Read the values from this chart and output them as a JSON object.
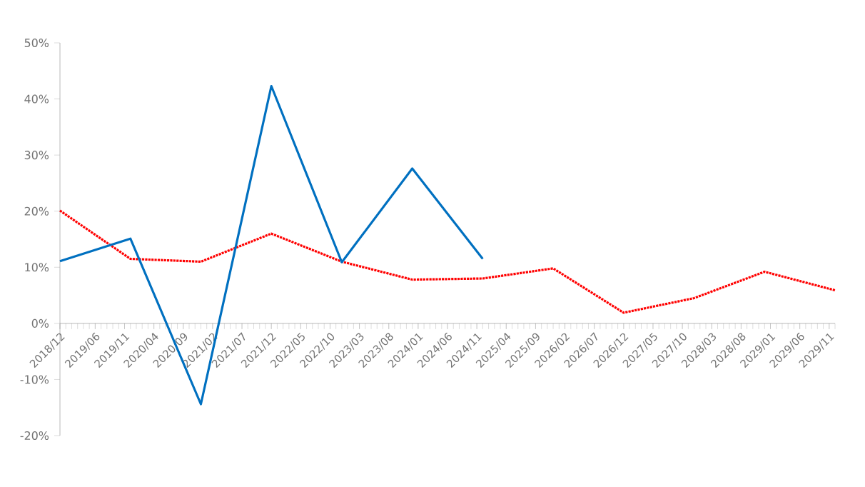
{
  "chart_data": {
    "type": "line",
    "x": [
      "2018-12",
      "2019-12",
      "2020-12",
      "2021-12",
      "2022-12",
      "2023-12",
      "2024-12",
      "2025-12",
      "2026-12",
      "2027-12",
      "2028-12",
      "2029-12"
    ],
    "series": [
      {
        "color": "#ff0000",
        "line_style": "dotted",
        "values": [
          20.1,
          11.5,
          11.0,
          16.0,
          11.0,
          7.8,
          8.0,
          9.8,
          1.9,
          4.5,
          9.2,
          5.9
        ]
      },
      {
        "color": "#0070c0",
        "line_style": "solid",
        "values": [
          11.1,
          15.1,
          -14.4,
          42.3,
          10.9,
          27.6,
          11.5,
          null,
          null,
          null,
          null,
          null
        ]
      }
    ],
    "xlim": [
      "2018-12",
      "2029-12"
    ],
    "xticks": [
      {
        "value": "2018-12",
        "label": "2018/12"
      },
      {
        "value": "2019-06",
        "label": "2019/06"
      },
      {
        "value": "2019-11",
        "label": "2019/11"
      },
      {
        "value": "2020-04",
        "label": "2020/04"
      },
      {
        "value": "2020-09",
        "label": "2020/09"
      },
      {
        "value": "2021-02",
        "label": "2021/02"
      },
      {
        "value": "2021-07",
        "label": "2021/07"
      },
      {
        "value": "2021-12",
        "label": "2021/12"
      },
      {
        "value": "2022-05",
        "label": "2022/05"
      },
      {
        "value": "2022-10",
        "label": "2022/10"
      },
      {
        "value": "2023-03",
        "label": "2023/03"
      },
      {
        "value": "2023-08",
        "label": "2023/08"
      },
      {
        "value": "2024-01",
        "label": "2024/01"
      },
      {
        "value": "2024-06",
        "label": "2024/06"
      },
      {
        "value": "2024-11",
        "label": "2024/11"
      },
      {
        "value": "2025-04",
        "label": "2025/04"
      },
      {
        "value": "2025-09",
        "label": "2025/09"
      },
      {
        "value": "2026-02",
        "label": "2026/02"
      },
      {
        "value": "2026-07",
        "label": "2026/07"
      },
      {
        "value": "2026-12",
        "label": "2026/12"
      },
      {
        "value": "2027-05",
        "label": "2027/05"
      },
      {
        "value": "2027-10",
        "label": "2027/10"
      },
      {
        "value": "2028-03",
        "label": "2028/03"
      },
      {
        "value": "2028-08",
        "label": "2028/08"
      },
      {
        "value": "2029-01",
        "label": "2029/01"
      },
      {
        "value": "2029-06",
        "label": "2029/06"
      },
      {
        "value": "2029-11",
        "label": "2029/11"
      }
    ],
    "ylim": [
      -20,
      50
    ],
    "yticks": [
      {
        "value": -20,
        "label": "-20%"
      },
      {
        "value": -10,
        "label": "-10%"
      },
      {
        "value": 0,
        "label": "0%"
      },
      {
        "value": 10,
        "label": "10%"
      },
      {
        "value": 20,
        "label": "20%"
      },
      {
        "value": 30,
        "label": "30%"
      },
      {
        "value": 40,
        "label": "40%"
      },
      {
        "value": 50,
        "label": "50%"
      }
    ],
    "grid": false,
    "legend": false,
    "marker": "none"
  }
}
